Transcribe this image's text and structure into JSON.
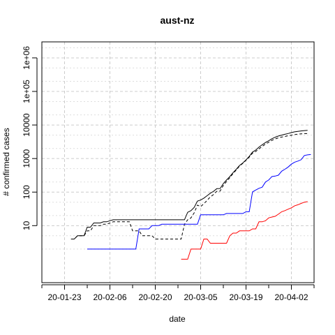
{
  "chart_data": {
    "type": "line",
    "title": "aust-nz",
    "xlabel": "date",
    "ylabel": "# confirmed cases",
    "y_scale": "log",
    "ylim": [
      0.2,
      3000000
    ],
    "xlim": [
      "2020-01-16",
      "2020-04-09"
    ],
    "grid": true,
    "x_ticks": [
      {
        "label": "20-01-23",
        "date": "2020-01-23"
      },
      {
        "label": "20-02-06",
        "date": "2020-02-06"
      },
      {
        "label": "20-02-20",
        "date": "2020-02-20"
      },
      {
        "label": "20-03-05",
        "date": "2020-03-05"
      },
      {
        "label": "20-03-19",
        "date": "2020-03-19"
      },
      {
        "label": "20-04-02",
        "date": "2020-04-02"
      }
    ],
    "x_minor_ticks": [
      "2020-01-16",
      "2020-01-30",
      "2020-02-13",
      "2020-02-27",
      "2020-03-12",
      "2020-03-26",
      "2020-04-09"
    ],
    "y_ticks": [
      {
        "label": "10",
        "value": 10
      },
      {
        "label": "100",
        "value": 100
      },
      {
        "label": "1000",
        "value": 1000
      },
      {
        "label": "10000",
        "value": 10000
      },
      {
        "label": "1e+05",
        "value": 100000
      },
      {
        "label": "1e+06",
        "value": 1000000
      }
    ],
    "series": [
      {
        "color": "#000000",
        "dash": "solid",
        "points": [
          [
            "2020-01-25",
            4
          ],
          [
            "2020-01-26",
            4
          ],
          [
            "2020-01-27",
            5
          ],
          [
            "2020-01-29",
            5
          ],
          [
            "2020-01-30",
            9
          ],
          [
            "2020-01-31",
            9
          ],
          [
            "2020-02-01",
            12
          ],
          [
            "2020-02-03",
            12
          ],
          [
            "2020-02-04",
            13
          ],
          [
            "2020-02-05",
            13
          ],
          [
            "2020-02-06",
            14
          ],
          [
            "2020-02-07",
            15
          ],
          [
            "2020-02-29",
            15
          ],
          [
            "2020-03-01",
            25
          ],
          [
            "2020-03-02",
            28
          ],
          [
            "2020-03-03",
            35
          ],
          [
            "2020-03-04",
            54
          ],
          [
            "2020-03-05",
            58
          ],
          [
            "2020-03-06",
            66
          ],
          [
            "2020-03-07",
            78
          ],
          [
            "2020-03-08",
            93
          ],
          [
            "2020-03-09",
            106
          ],
          [
            "2020-03-10",
            127
          ],
          [
            "2020-03-11",
            128
          ],
          [
            "2020-03-12",
            180
          ],
          [
            "2020-03-13",
            230
          ],
          [
            "2020-03-14",
            290
          ],
          [
            "2020-03-15",
            380
          ],
          [
            "2020-03-16",
            480
          ],
          [
            "2020-03-17",
            620
          ],
          [
            "2020-03-18",
            740
          ],
          [
            "2020-03-19",
            910
          ],
          [
            "2020-03-20",
            1160
          ],
          [
            "2020-03-21",
            1560
          ],
          [
            "2020-03-22",
            1780
          ],
          [
            "2020-03-23",
            2200
          ],
          [
            "2020-03-24",
            2580
          ],
          [
            "2020-03-25",
            3010
          ],
          [
            "2020-03-26",
            3380
          ],
          [
            "2020-03-27",
            3900
          ],
          [
            "2020-03-28",
            4320
          ],
          [
            "2020-03-29",
            4690
          ],
          [
            "2020-03-30",
            4990
          ],
          [
            "2020-03-31",
            5280
          ],
          [
            "2020-04-01",
            5570
          ],
          [
            "2020-04-02",
            5920
          ],
          [
            "2020-04-03",
            6250
          ],
          [
            "2020-04-04",
            6470
          ],
          [
            "2020-04-05",
            6660
          ],
          [
            "2020-04-06",
            6810
          ],
          [
            "2020-04-07",
            6920
          ]
        ]
      },
      {
        "color": "#000000",
        "dash": "dashed",
        "points": [
          [
            "2020-01-25",
            4
          ],
          [
            "2020-01-26",
            4
          ],
          [
            "2020-01-27",
            5
          ],
          [
            "2020-01-29",
            5
          ],
          [
            "2020-01-30",
            7
          ],
          [
            "2020-01-31",
            7
          ],
          [
            "2020-02-01",
            10
          ],
          [
            "2020-02-03",
            10
          ],
          [
            "2020-02-04",
            11
          ],
          [
            "2020-02-05",
            11
          ],
          [
            "2020-02-06",
            12
          ],
          [
            "2020-02-07",
            13
          ],
          [
            "2020-02-12",
            13
          ],
          [
            "2020-02-13",
            7
          ],
          [
            "2020-02-15",
            7
          ],
          [
            "2020-02-16",
            5
          ],
          [
            "2020-02-19",
            5
          ],
          [
            "2020-02-20",
            4
          ],
          [
            "2020-02-28",
            4
          ],
          [
            "2020-02-29",
            11
          ],
          [
            "2020-03-01",
            15
          ],
          [
            "2020-03-02",
            17
          ],
          [
            "2020-03-03",
            24
          ],
          [
            "2020-03-04",
            41
          ],
          [
            "2020-03-05",
            37
          ],
          [
            "2020-03-06",
            45
          ],
          [
            "2020-03-07",
            57
          ],
          [
            "2020-03-08",
            72
          ],
          [
            "2020-03-09",
            85
          ],
          [
            "2020-03-10",
            106
          ],
          [
            "2020-03-11",
            107
          ],
          [
            "2020-03-12",
            158
          ],
          [
            "2020-03-13",
            208
          ],
          [
            "2020-03-14",
            268
          ],
          [
            "2020-03-15",
            358
          ],
          [
            "2020-03-16",
            458
          ],
          [
            "2020-03-17",
            598
          ],
          [
            "2020-03-18",
            718
          ],
          [
            "2020-03-19",
            888
          ],
          [
            "2020-03-20",
            1100
          ],
          [
            "2020-03-21",
            1450
          ],
          [
            "2020-03-22",
            1620
          ],
          [
            "2020-03-23",
            1940
          ],
          [
            "2020-03-24",
            2300
          ],
          [
            "2020-03-25",
            2700
          ],
          [
            "2020-03-26",
            3050
          ],
          [
            "2020-03-27",
            3480
          ],
          [
            "2020-03-28",
            3860
          ],
          [
            "2020-03-29",
            4150
          ],
          [
            "2020-03-30",
            4370
          ],
          [
            "2020-03-31",
            4560
          ],
          [
            "2020-04-01",
            4790
          ],
          [
            "2020-04-02",
            4960
          ],
          [
            "2020-04-03",
            5150
          ],
          [
            "2020-04-04",
            5330
          ],
          [
            "2020-04-05",
            5450
          ],
          [
            "2020-04-06",
            5520
          ],
          [
            "2020-04-07",
            5560
          ]
        ]
      },
      {
        "color": "#0000ff",
        "dash": "solid",
        "points": [
          [
            "2020-01-30",
            2
          ],
          [
            "2020-02-14",
            2
          ],
          [
            "2020-02-15",
            8
          ],
          [
            "2020-02-18",
            8
          ],
          [
            "2020-02-19",
            10
          ],
          [
            "2020-02-21",
            10
          ],
          [
            "2020-02-22",
            11
          ],
          [
            "2020-03-04",
            11
          ],
          [
            "2020-03-05",
            21
          ],
          [
            "2020-03-12",
            21
          ],
          [
            "2020-03-13",
            23
          ],
          [
            "2020-03-18",
            23
          ],
          [
            "2020-03-19",
            26
          ],
          [
            "2020-03-20",
            26
          ],
          [
            "2020-03-21",
            101
          ],
          [
            "2020-03-22",
            115
          ],
          [
            "2020-03-23",
            130
          ],
          [
            "2020-03-24",
            140
          ],
          [
            "2020-03-25",
            200
          ],
          [
            "2020-03-26",
            230
          ],
          [
            "2020-03-27",
            290
          ],
          [
            "2020-03-28",
            300
          ],
          [
            "2020-03-29",
            320
          ],
          [
            "2020-03-30",
            420
          ],
          [
            "2020-03-31",
            480
          ],
          [
            "2020-04-01",
            560
          ],
          [
            "2020-04-02",
            680
          ],
          [
            "2020-04-03",
            780
          ],
          [
            "2020-04-04",
            840
          ],
          [
            "2020-04-05",
            920
          ],
          [
            "2020-04-06",
            1230
          ],
          [
            "2020-04-07",
            1290
          ],
          [
            "2020-04-08",
            1320
          ]
        ]
      },
      {
        "color": "#ff0000",
        "dash": "solid",
        "points": [
          [
            "2020-02-28",
            1
          ],
          [
            "2020-03-01",
            1
          ],
          [
            "2020-03-02",
            2
          ],
          [
            "2020-03-05",
            2
          ],
          [
            "2020-03-06",
            4
          ],
          [
            "2020-03-07",
            4
          ],
          [
            "2020-03-08",
            3
          ],
          [
            "2020-03-13",
            3
          ],
          [
            "2020-03-14",
            5
          ],
          [
            "2020-03-15",
            6
          ],
          [
            "2020-03-16",
            6
          ],
          [
            "2020-03-17",
            7
          ],
          [
            "2020-03-20",
            7
          ],
          [
            "2020-03-21",
            8
          ],
          [
            "2020-03-22",
            8
          ],
          [
            "2020-03-23",
            13
          ],
          [
            "2020-03-24",
            13
          ],
          [
            "2020-03-25",
            14
          ],
          [
            "2020-03-26",
            17
          ],
          [
            "2020-03-27",
            18
          ],
          [
            "2020-03-28",
            19
          ],
          [
            "2020-03-29",
            22
          ],
          [
            "2020-03-30",
            26
          ],
          [
            "2020-03-31",
            28
          ],
          [
            "2020-04-01",
            31
          ],
          [
            "2020-04-02",
            34
          ],
          [
            "2020-04-03",
            39
          ],
          [
            "2020-04-04",
            42
          ],
          [
            "2020-04-05",
            46
          ],
          [
            "2020-04-06",
            50
          ],
          [
            "2020-04-07",
            52
          ]
        ]
      }
    ]
  }
}
